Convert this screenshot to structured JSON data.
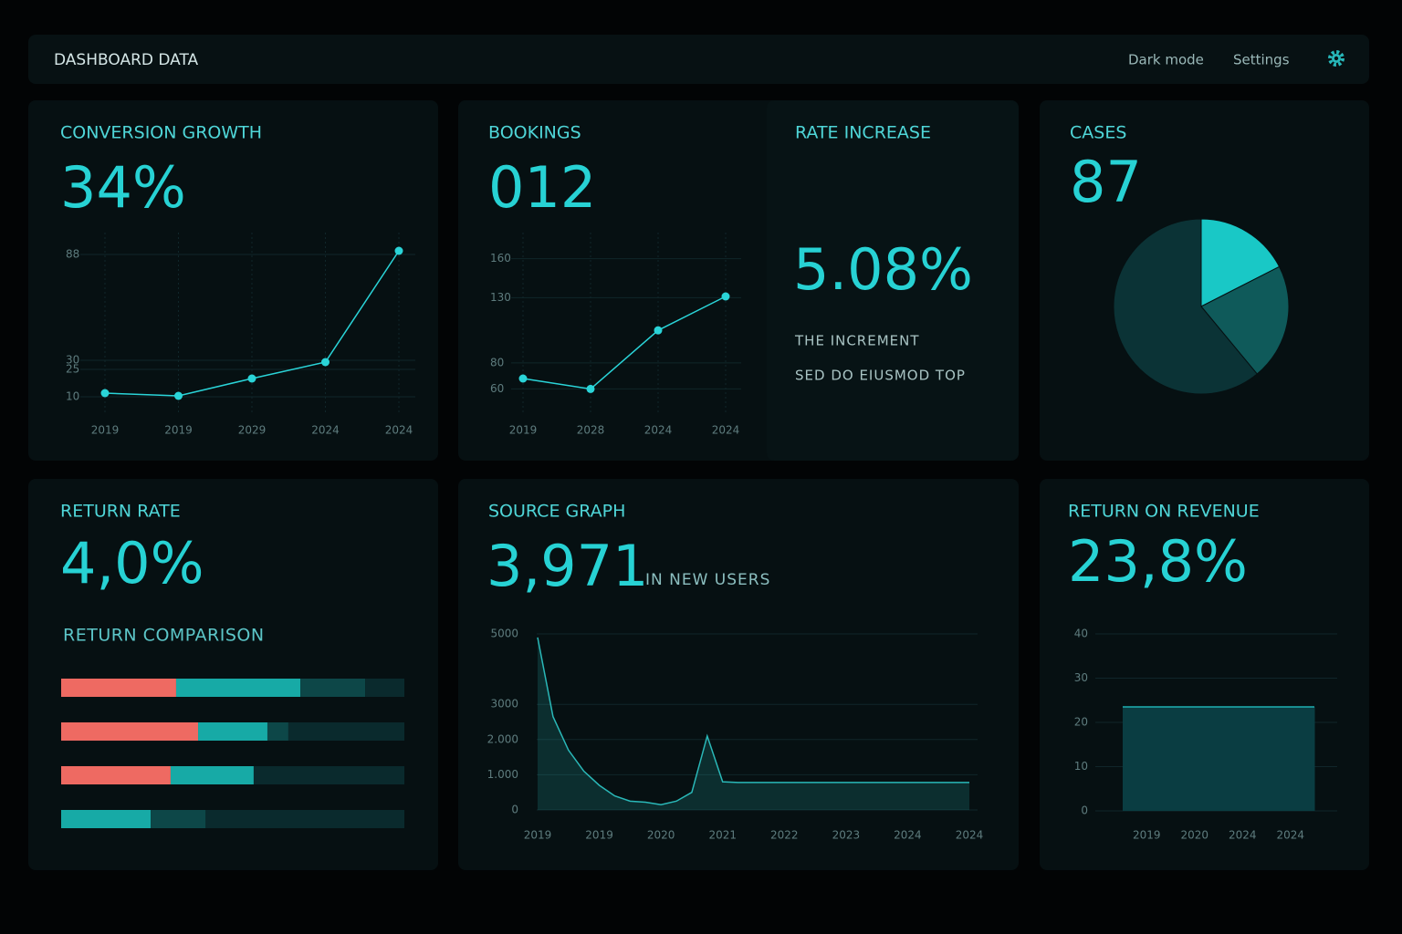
{
  "header": {
    "title": "DASHBOARD DATA",
    "nav": [
      "Dark mode",
      "Settings"
    ]
  },
  "panels": [
    {
      "title": "CONVERSION GROWTH",
      "value": "34%",
      "chart_data": {
        "type": "line",
        "color": "#2ad4d8",
        "categories": [
          "2019",
          "2019",
          "2029",
          "2024",
          "2024"
        ],
        "values": [
          12,
          10.5,
          20,
          29,
          90
        ],
        "ylim": [
          0,
          100
        ],
        "yticks": [
          10,
          25,
          30,
          88
        ],
        "grid": true
      }
    },
    {
      "title": "BOOKINGS",
      "value": "012",
      "chart_data": {
        "type": "line",
        "color": "#2ad4d8",
        "categories": [
          "2019",
          "2028",
          "2024",
          "2024"
        ],
        "values": [
          68,
          60,
          105,
          131
        ],
        "ylim": [
          40,
          180
        ],
        "yticks": [
          60,
          80,
          130,
          160
        ],
        "grid": true
      }
    },
    {
      "title": "RATE INCREASE",
      "value": "5.08%",
      "notes": [
        "THE INCREMENT",
        "SED DO EIUSMOD TOP"
      ]
    },
    {
      "title": "CASES",
      "value": "87",
      "chart_data": {
        "type": "pie",
        "values": [
          17.5,
          21.5,
          61
        ],
        "colors": [
          "#19c8c6",
          "#0f5a5a",
          "#0b3336"
        ]
      }
    },
    {
      "title": "RETURN RATE",
      "value": "4,0%",
      "subtitle": "RETURN COMPARISON",
      "chart_data": {
        "type": "stacked_barh",
        "xlim": [
          0,
          100
        ],
        "series": [
          {
            "color": "#ee6a62",
            "values": [
              33.5,
              39.9,
              31.9,
              0
            ]
          },
          {
            "color": "#17aaa6",
            "values": [
              36.2,
              20.2,
              24.2,
              26.1
            ]
          },
          {
            "color": "#0d4748",
            "values": [
              18.9,
              6.1,
              0,
              16
            ]
          },
          {
            "color": "#0a2a2d",
            "values": [
              11.4,
              33.8,
              43.9,
              57.9
            ]
          }
        ]
      }
    },
    {
      "title": "SOURCE GRAPH",
      "value": "3,971",
      "caption": "IN NEW USERS",
      "chart_data": {
        "type": "area",
        "color": "#2ab8b8",
        "categories": [
          "2019",
          null,
          null,
          null,
          "2019",
          null,
          null,
          null,
          "2020",
          null,
          null,
          null,
          "2021",
          null,
          null,
          null,
          "2022",
          null,
          null,
          null,
          "2023",
          null,
          null,
          null,
          "2024",
          null,
          null,
          null,
          "2024"
        ],
        "values": [
          4900,
          2650,
          1700,
          1100,
          700,
          400,
          250,
          220,
          150,
          250,
          500,
          2100,
          800,
          780,
          780,
          780,
          780,
          780,
          780,
          780,
          780,
          780,
          780,
          780,
          780,
          780,
          780,
          780,
          780
        ],
        "ylim": [
          0,
          5000
        ],
        "yticks": [
          0,
          {
            "value": 1000,
            "label": "1.000"
          },
          {
            "value": 2000,
            "label": "2.000"
          },
          3000,
          5000
        ],
        "grid": true
      }
    },
    {
      "title": "RETURN ON REVENUE",
      "value": "23,8%",
      "chart_data": {
        "type": "bar",
        "color": "#0a3d42",
        "categories": [
          "2019",
          "2020",
          "2024",
          "2024"
        ],
        "values": [
          23.5,
          23.5,
          23.5,
          23.5
        ],
        "ylim": [
          0,
          40
        ],
        "yticks": [
          0,
          10,
          20,
          30,
          40
        ],
        "grid": true
      }
    }
  ]
}
